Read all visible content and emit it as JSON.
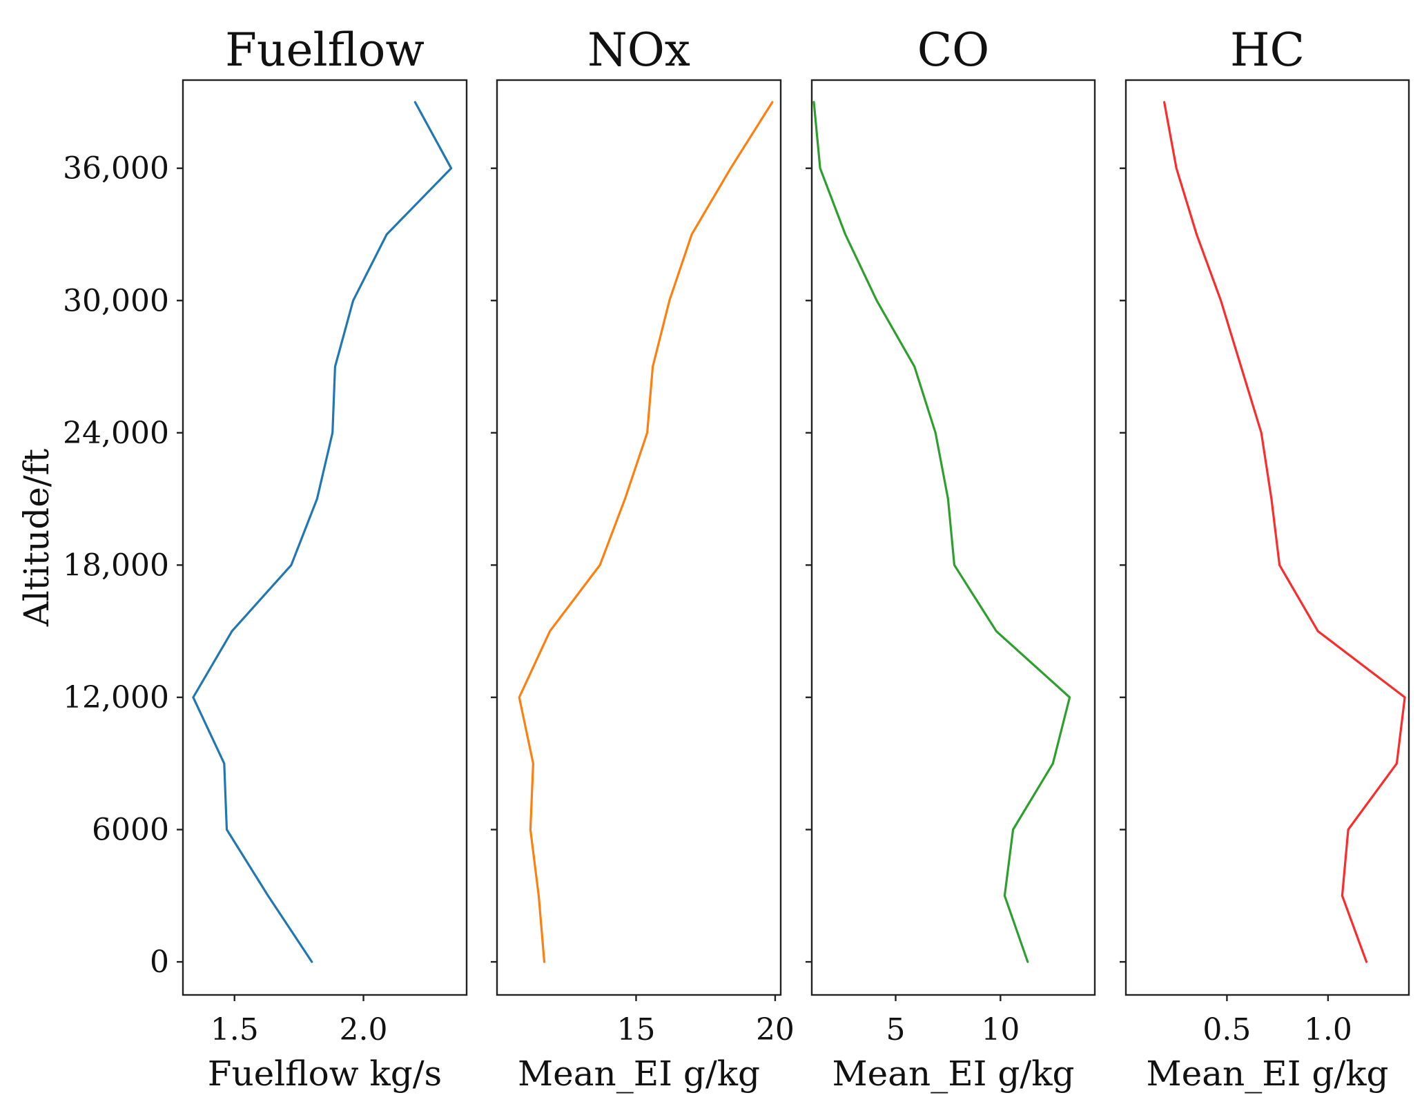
{
  "chart_data": {
    "type": "line",
    "layout": "4 side-by-side panels sharing the y axis",
    "y_axis": {
      "label": "Altitude/ft",
      "ylim": [
        -1500,
        40000
      ],
      "ticks": [
        0,
        6000,
        12000,
        18000,
        24000,
        30000,
        36000
      ],
      "tick_labels": [
        "0",
        "6000",
        "12,000",
        "18,000",
        "24,000",
        "30,000",
        "36,000"
      ]
    },
    "altitudes": [
      0,
      3000,
      6000,
      9000,
      12000,
      15000,
      18000,
      21000,
      24000,
      27000,
      30000,
      33000,
      36000,
      39000
    ],
    "panels": [
      {
        "title": "Fuelflow",
        "xlabel": "Fuelflow kg/s",
        "xlim": [
          1.3,
          2.4
        ],
        "xticks": [
          1.5,
          2.0
        ],
        "xtick_labels": [
          "1.5",
          "2.0"
        ],
        "color": "#1f77b4",
        "values": [
          1.8,
          1.63,
          1.47,
          1.46,
          1.34,
          1.49,
          1.72,
          1.82,
          1.88,
          1.89,
          1.96,
          2.09,
          2.34,
          2.2
        ]
      },
      {
        "title": "NOx",
        "xlabel": "Mean_EI g/kg",
        "xlim": [
          10.0,
          20.2
        ],
        "xticks": [
          15,
          20
        ],
        "xtick_labels": [
          "15",
          "20"
        ],
        "color": "#ff7f0e",
        "values": [
          11.7,
          11.5,
          11.2,
          11.3,
          10.8,
          11.9,
          13.7,
          14.6,
          15.4,
          15.6,
          16.2,
          17.0,
          18.4,
          19.9
        ]
      },
      {
        "title": "CO",
        "xlabel": "Mean_EI g/kg",
        "xlim": [
          1.0,
          14.5
        ],
        "xticks": [
          5,
          10
        ],
        "xtick_labels": [
          "5",
          "10"
        ],
        "color": "#2ca02c",
        "values": [
          11.3,
          10.2,
          10.6,
          12.5,
          13.3,
          9.8,
          7.8,
          7.5,
          6.9,
          5.9,
          4.1,
          2.6,
          1.4,
          1.1
        ]
      },
      {
        "title": "HC",
        "xlabel": "Mean_EI g/kg",
        "xlim": [
          0.0,
          1.4
        ],
        "xticks": [
          0.5,
          1.0
        ],
        "xtick_labels": [
          "0.5",
          "1.0"
        ],
        "color": "#ff2a2a",
        "values": [
          1.19,
          1.07,
          1.1,
          1.34,
          1.38,
          0.95,
          0.76,
          0.72,
          0.67,
          0.57,
          0.47,
          0.35,
          0.25,
          0.19
        ]
      }
    ]
  }
}
